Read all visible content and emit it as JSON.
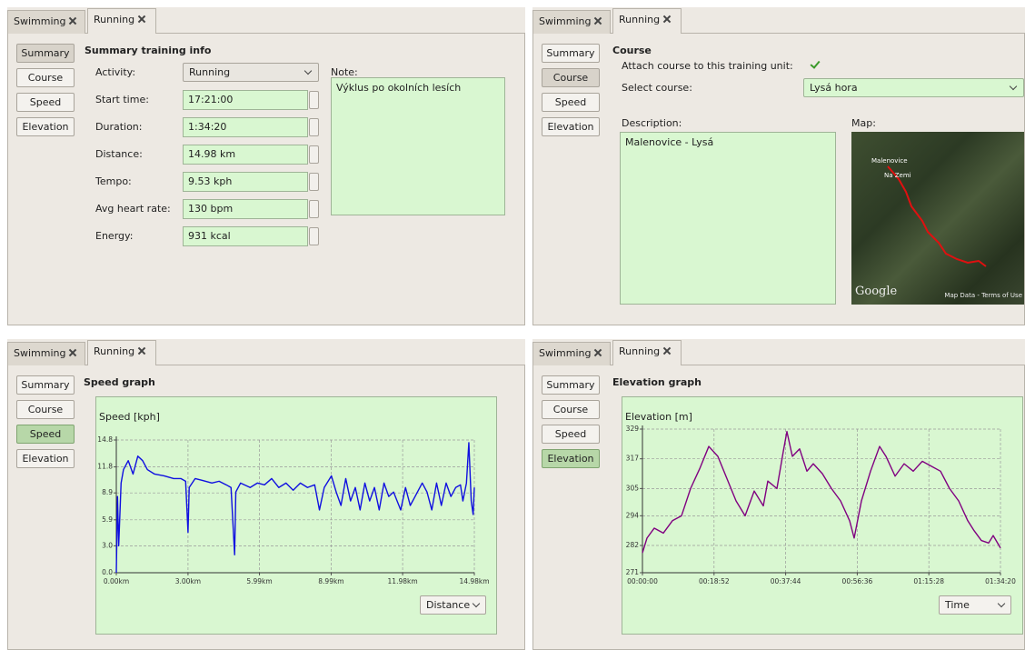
{
  "panels": [
    {
      "tabs": [
        "Swimming",
        "Running"
      ],
      "nav": [
        "Summary",
        "Course",
        "Speed",
        "Elevation"
      ],
      "heading": "Summary training info",
      "fields": [
        {
          "label": "Activity:",
          "value": "Running"
        },
        {
          "label": "Start time:",
          "value": "17:21:00"
        },
        {
          "label": "Duration:",
          "value": "1:34:20"
        },
        {
          "label": "Distance:",
          "value": "14.98 km"
        },
        {
          "label": "Tempo:",
          "value": "9.53 kph"
        },
        {
          "label": "Avg heart rate:",
          "value": "130 bpm"
        },
        {
          "label": "Energy:",
          "value": "931 kcal"
        }
      ],
      "note_label": "Note:",
      "note": "Výklus po okolních lesích"
    },
    {
      "tabs": [
        "Swimming",
        "Running"
      ],
      "nav": [
        "Summary",
        "Course",
        "Speed",
        "Elevation"
      ],
      "heading": "Course",
      "attach_label": "Attach course to this training unit:",
      "select_label": "Select course:",
      "course": "Lysá hora",
      "description_label": "Description:",
      "description": "Malenovice - Lysá",
      "map_label": "Map:",
      "map_places": [
        "Malenovice",
        "Na Zemi"
      ],
      "map_logo": "Google",
      "map_credits": "Map Data - Terms of Use"
    },
    {
      "tabs": [
        "Swimming",
        "Running"
      ],
      "nav": [
        "Summary",
        "Course",
        "Speed",
        "Elevation"
      ],
      "axis_select": "Distance"
    },
    {
      "tabs": [
        "Swimming",
        "Running"
      ],
      "nav": [
        "Summary",
        "Course",
        "Speed",
        "Elevation"
      ],
      "axis_select": "Time"
    }
  ],
  "chart_data": [
    {
      "type": "line",
      "title": "Speed graph",
      "ylabel": "Speed [kph]",
      "color": "#1010e0",
      "grid": true,
      "xlim": [
        0,
        14.98
      ],
      "ylim": [
        0,
        14.8
      ],
      "xticks": [
        {
          "value": 0,
          "label": "0.00km"
        },
        {
          "value": 3,
          "label": "3.00km"
        },
        {
          "value": 5.99,
          "label": "5.99km"
        },
        {
          "value": 8.99,
          "label": "8.99km"
        },
        {
          "value": 11.98,
          "label": "11.98km"
        },
        {
          "value": 14.98,
          "label": "14.98km"
        }
      ],
      "yticks": [
        {
          "value": 0,
          "label": "0.0"
        },
        {
          "value": 3,
          "label": "3.0"
        },
        5.9,
        8.9,
        11.8,
        14.8
      ],
      "x": [
        0,
        0.05,
        0.1,
        0.2,
        0.3,
        0.5,
        0.7,
        0.9,
        1.1,
        1.3,
        1.6,
        2.0,
        2.4,
        2.7,
        2.9,
        3.0,
        3.05,
        3.3,
        3.6,
        4.0,
        4.3,
        4.6,
        4.8,
        4.95,
        5.0,
        5.2,
        5.6,
        5.9,
        6.2,
        6.5,
        6.8,
        7.1,
        7.4,
        7.7,
        8.0,
        8.3,
        8.5,
        8.7,
        9.0,
        9.2,
        9.4,
        9.6,
        9.8,
        10.0,
        10.2,
        10.4,
        10.6,
        10.8,
        11.0,
        11.2,
        11.4,
        11.6,
        11.9,
        12.1,
        12.3,
        12.5,
        12.8,
        13.0,
        13.2,
        13.4,
        13.6,
        13.8,
        14.0,
        14.2,
        14.4,
        14.5,
        14.65,
        14.75,
        14.85,
        14.93,
        14.98
      ],
      "values": [
        0,
        8.5,
        3,
        10,
        11.5,
        12.5,
        11,
        13,
        12.5,
        11.5,
        11,
        10.8,
        10.5,
        10.5,
        10.2,
        4.5,
        9.5,
        10.5,
        10.3,
        10,
        10.2,
        9.8,
        9.5,
        2,
        9,
        10,
        9.5,
        10,
        9.8,
        10.5,
        9.5,
        10,
        9.2,
        10,
        9.5,
        9.8,
        7,
        9.5,
        10.8,
        9,
        7.5,
        10.5,
        8,
        9.5,
        7,
        10,
        8,
        9.5,
        7,
        10,
        8.5,
        9,
        7,
        9.5,
        7.5,
        8.5,
        10,
        9,
        7,
        10,
        7.5,
        10,
        8.5,
        9.5,
        9.8,
        8,
        10,
        14.5,
        8,
        6.5,
        9.5
      ]
    },
    {
      "type": "line",
      "title": "Elevation graph",
      "ylabel": "Elevation [m]",
      "color": "#800080",
      "grid": true,
      "xlim": [
        0,
        5660
      ],
      "ylim": [
        271,
        329
      ],
      "xticks": [
        {
          "value": 0,
          "label": "00:00:00"
        },
        {
          "value": 1132,
          "label": "00:18:52"
        },
        {
          "value": 2264,
          "label": "00:37:44"
        },
        {
          "value": 3396,
          "label": "00:56:36"
        },
        {
          "value": 4528,
          "label": "01:15:28"
        },
        {
          "value": 5660,
          "label": "01:34:20"
        }
      ],
      "yticks": [
        271,
        282,
        294,
        305,
        317,
        329
      ],
      "x": [
        0,
        72,
        187,
        330,
        474,
        618,
        761,
        905,
        1049,
        1192,
        1336,
        1480,
        1623,
        1767,
        1911,
        1982,
        2126,
        2227,
        2284,
        2370,
        2485,
        2600,
        2701,
        2844,
        2988,
        3132,
        3275,
        3347,
        3462,
        3606,
        3749,
        3850,
        3994,
        4137,
        4281,
        4424,
        4568,
        4712,
        4855,
        4999,
        5143,
        5243,
        5358,
        5473,
        5545,
        5660
      ],
      "values": [
        279,
        285,
        289,
        287,
        292,
        294,
        305,
        313,
        322,
        318,
        309,
        300,
        294,
        304,
        298,
        308,
        305,
        320,
        328,
        318,
        321,
        312,
        315,
        311,
        305,
        300,
        292,
        285,
        300,
        312,
        322,
        318,
        310,
        315,
        312,
        316,
        314,
        312,
        305,
        300,
        292,
        288,
        284,
        283,
        286,
        281
      ]
    }
  ]
}
